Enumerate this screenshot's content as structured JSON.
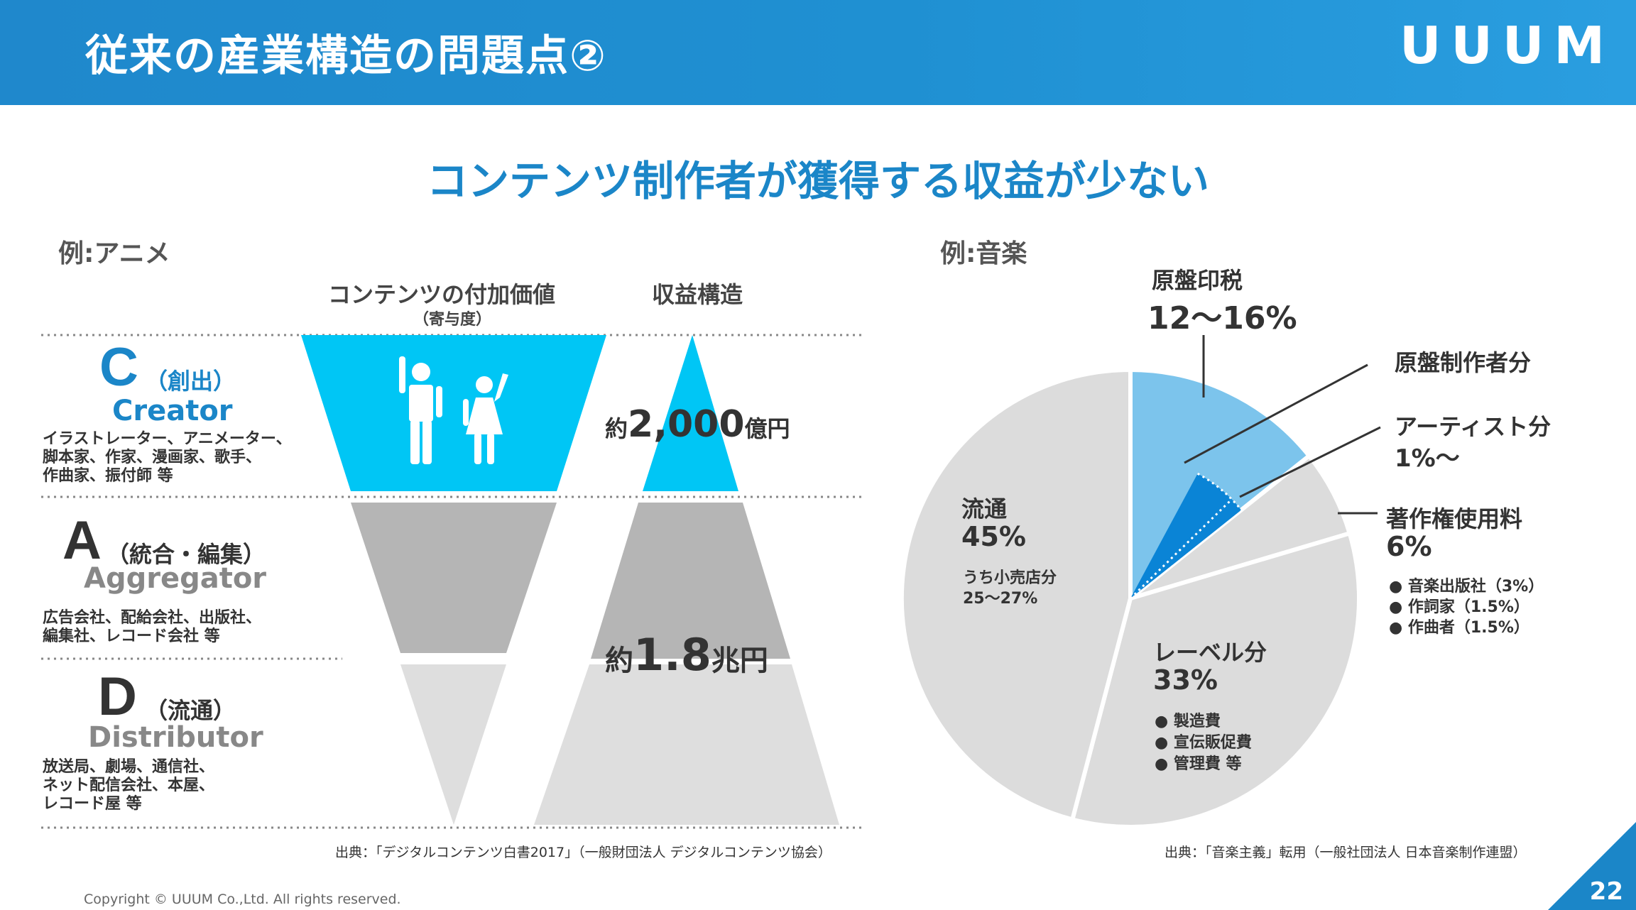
{
  "header": {
    "title": "従来の産業構造の問題点②",
    "logo": "UUUM"
  },
  "subtitle": "コンテンツ制作者が獲得する収益が少ない",
  "anime": {
    "section_label": "例:アニメ",
    "col_value": "コンテンツの付加価値",
    "col_value_sub": "（寄与度）",
    "col_revenue": "収益構造",
    "layers": [
      {
        "letter": "C",
        "role": "（創出）",
        "english": "Creator",
        "desc": [
          "イラストレーター、アニメーター、",
          "脚本家、作家、漫画家、歌手、",
          "作曲家、振付師 等"
        ]
      },
      {
        "letter": "A",
        "role": "（統合・編集）",
        "english": "Aggregator",
        "desc": [
          "広告会社、配給会社、出版社、",
          "編集社、レコード会社 等"
        ]
      },
      {
        "letter": "D",
        "role": "（流通）",
        "english": "Distributor",
        "desc": [
          "放送局、劇場、通信社、",
          "ネット配信会社、本屋、",
          "レコード屋 等"
        ]
      }
    ],
    "revenue_creator": {
      "prefix": "約",
      "value": "2,000",
      "unit": "億円"
    },
    "revenue_total": {
      "prefix": "約",
      "value": "1.8",
      "unit": "兆円"
    },
    "source": "出典：「デジタルコンテンツ白書2017」（一般財団法人 デジタルコンテンツ協会）"
  },
  "music": {
    "section_label": "例:音楽",
    "source": "出典：「音楽主義」転用（一般社団法人 日本音楽制作連盟）"
  },
  "chart_data": {
    "type": "pie",
    "title": "例:音楽",
    "slices": [
      {
        "name": "原盤印税",
        "label": "12〜16%",
        "value": 14,
        "color": "#7cc4ec",
        "sub_slices": [
          {
            "name": "原盤制作者分",
            "value": 7.5,
            "color": "#0a84d6"
          },
          {
            "name": "アーティスト分",
            "label": "1%〜",
            "value": 2.5,
            "color": "#0a84d6"
          }
        ]
      },
      {
        "name": "著作権使用料",
        "label": "6%",
        "value": 6,
        "color": "#dcdcdc",
        "details": [
          "● 音楽出版社（3%）",
          "● 作詞家（1.5%）",
          "● 作曲者（1.5%）"
        ]
      },
      {
        "name": "レーベル分",
        "label": "33%",
        "value": 33,
        "color": "#dcdcdc",
        "details": [
          "● 製造費",
          "● 宣伝販促費",
          "● 管理費 等"
        ]
      },
      {
        "name": "流通",
        "label": "45%",
        "value": 45,
        "color": "#dcdcdc",
        "details": [
          "うち小売店分",
          "25〜27%"
        ]
      }
    ]
  },
  "footer": {
    "copyright": "Copyright © UUUM Co.,Ltd. All rights reserved.",
    "page": "22"
  },
  "colors": {
    "brand_blue": "#1b86c8",
    "cyan": "#00c6f5",
    "gray_dark": "#b5b5b5",
    "gray_light": "#dedede"
  }
}
